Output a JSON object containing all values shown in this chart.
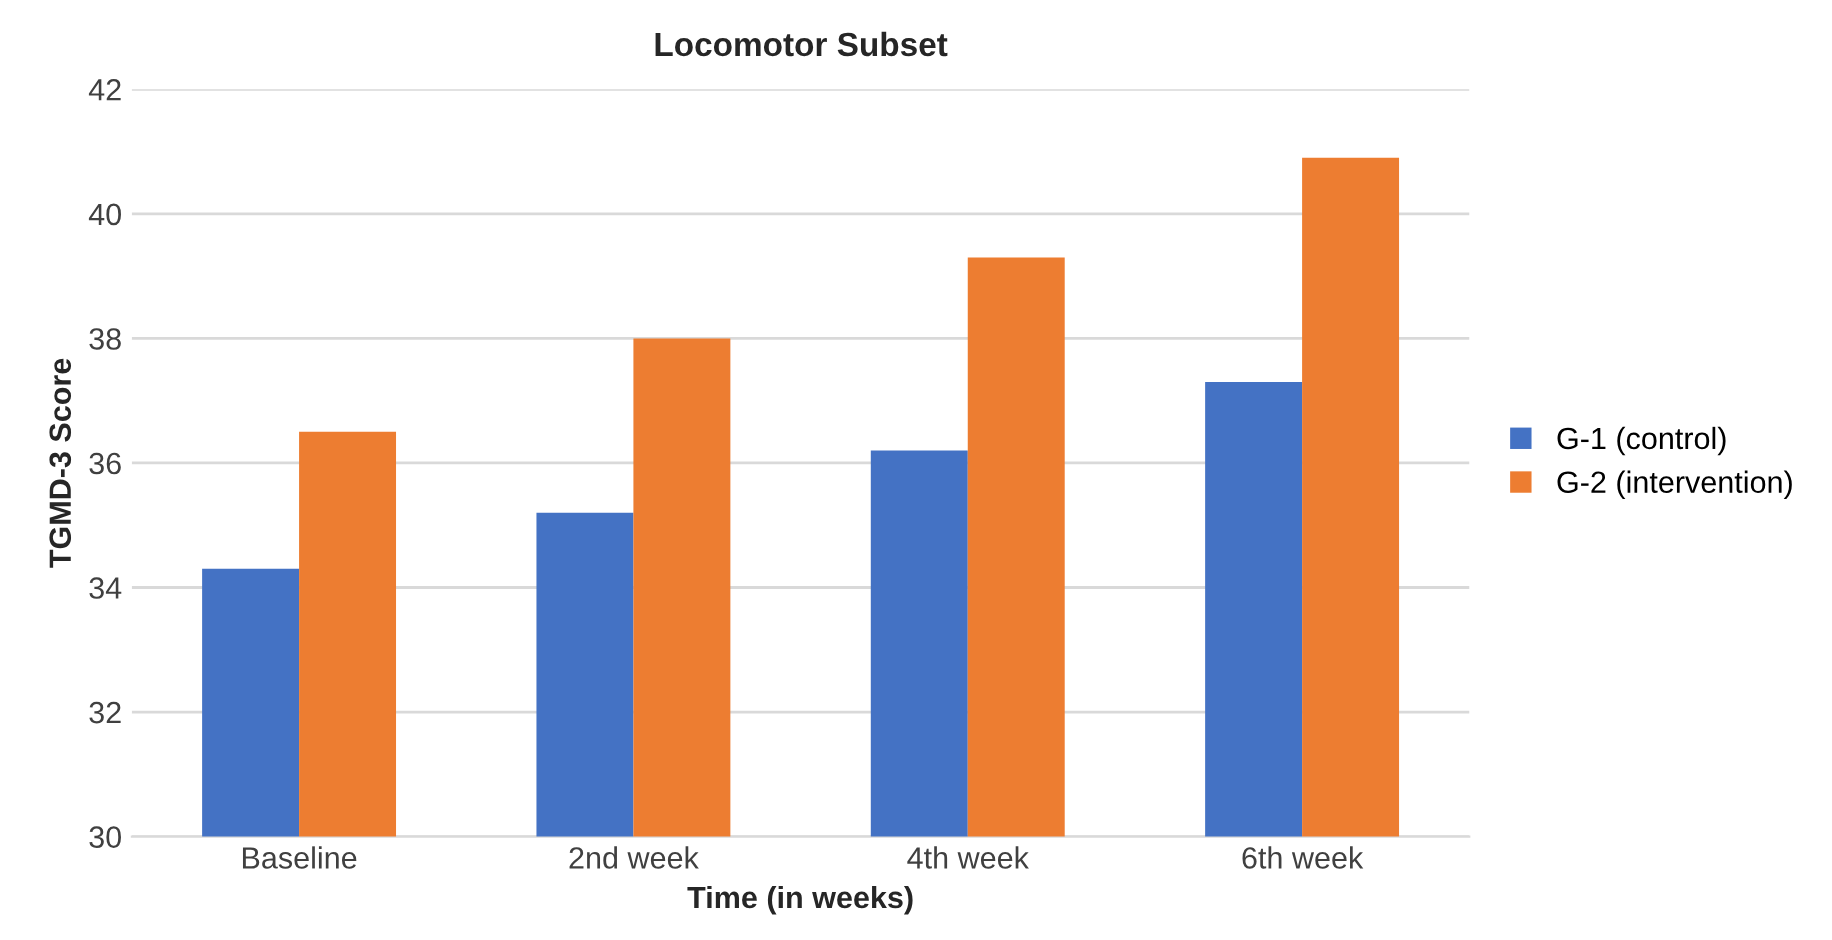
{
  "chart_data": {
    "type": "bar",
    "title": "Locomotor Subset",
    "xlabel": "Time (in weeks)",
    "ylabel": "TGMD-3 Score",
    "categories": [
      "Baseline",
      "2nd week",
      "4th week",
      "6th week"
    ],
    "series": [
      {
        "name": "G-1 (control)",
        "color": "#4472c4",
        "values": [
          34.3,
          35.2,
          36.2,
          37.3
        ]
      },
      {
        "name": "G-2 (intervention)",
        "color": "#ed7d31",
        "values": [
          36.5,
          38.0,
          39.3,
          40.9
        ]
      }
    ],
    "ylim": [
      30,
      42
    ],
    "yticks": [
      30,
      32,
      34,
      36,
      38,
      40,
      42
    ],
    "grid": "y",
    "legend": "right"
  }
}
